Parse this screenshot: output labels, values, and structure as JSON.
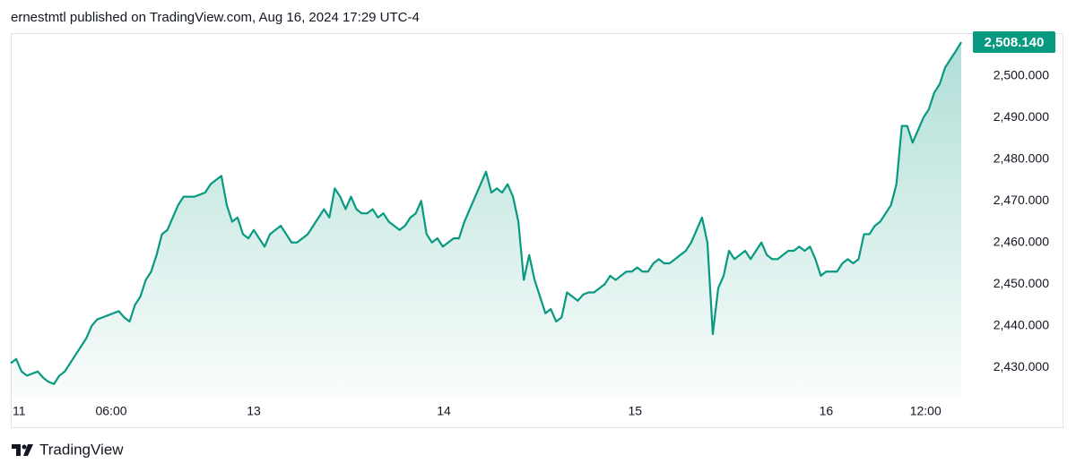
{
  "header": "ernestmtl published on TradingView.com, Aug 16, 2024 17:29 UTC-4",
  "footer": "TradingView",
  "chart_data": {
    "type": "area",
    "color": "#089981",
    "values": [
      2431,
      2432,
      2429,
      2428,
      2428.5,
      2429,
      2427.5,
      2426.5,
      2426,
      2428,
      2429,
      2431,
      2433,
      2435,
      2437,
      2440,
      2441.5,
      2442,
      2442.5,
      2443,
      2443.5,
      2442,
      2441,
      2445,
      2447,
      2451,
      2453,
      2457,
      2462,
      2463,
      2466,
      2469,
      2471,
      2471,
      2471,
      2471.5,
      2472,
      2474,
      2475,
      2476,
      2469,
      2465,
      2466,
      2462,
      2461,
      2463,
      2461,
      2459,
      2462,
      2463,
      2464,
      2462,
      2460,
      2460,
      2461,
      2462,
      2464,
      2466,
      2468,
      2466,
      2473,
      2471,
      2468,
      2471,
      2468,
      2467,
      2467,
      2468,
      2466,
      2467,
      2465,
      2464,
      2463,
      2464,
      2466,
      2467,
      2470,
      2462,
      2460,
      2461,
      2459,
      2460,
      2461,
      2461,
      2465,
      2468,
      2471,
      2474,
      2477,
      2472,
      2473,
      2472,
      2474,
      2471,
      2465,
      2451,
      2457,
      2451,
      2447,
      2443,
      2444,
      2441,
      2442,
      2448,
      2447,
      2446,
      2447.5,
      2448,
      2448,
      2449,
      2450,
      2452,
      2451,
      2452,
      2453,
      2453,
      2454,
      2453,
      2453,
      2455,
      2456,
      2455,
      2455,
      2456,
      2457,
      2458,
      2460,
      2463,
      2466,
      2460,
      2438,
      2449,
      2452,
      2458,
      2456,
      2457,
      2458,
      2456,
      2458,
      2460,
      2457,
      2456,
      2456,
      2457,
      2458,
      2458,
      2459,
      2458,
      2459,
      2456,
      2452,
      2453,
      2453,
      2453,
      2455,
      2456,
      2455,
      2456,
      2462,
      2462,
      2464,
      2465,
      2467,
      2469,
      2474,
      2488,
      2488,
      2484,
      2487,
      2490,
      2492,
      2496,
      2498,
      2502,
      2504,
      2506,
      2508.14
    ],
    "ylim": [
      2422.5,
      2510.3
    ],
    "yticks": [
      {
        "value": 2430,
        "label": "2,430.000"
      },
      {
        "value": 2440,
        "label": "2,440.000"
      },
      {
        "value": 2450,
        "label": "2,450.000"
      },
      {
        "value": 2460,
        "label": "2,460.000"
      },
      {
        "value": 2470,
        "label": "2,470.000"
      },
      {
        "value": 2480,
        "label": "2,480.000"
      },
      {
        "value": 2490,
        "label": "2,490.000"
      },
      {
        "value": 2500,
        "label": "2,500.000"
      }
    ],
    "xticks": [
      {
        "value": 1.7,
        "label": "11"
      },
      {
        "value": 18.6,
        "label": "06:00"
      },
      {
        "value": 45,
        "label": "13"
      },
      {
        "value": 80.2,
        "label": "14"
      },
      {
        "value": 115.6,
        "label": "15"
      },
      {
        "value": 151,
        "label": "16"
      },
      {
        "value": 169.4,
        "label": "12:00"
      }
    ],
    "last_price": {
      "value": 2508.14,
      "label": "2,508.140"
    }
  }
}
